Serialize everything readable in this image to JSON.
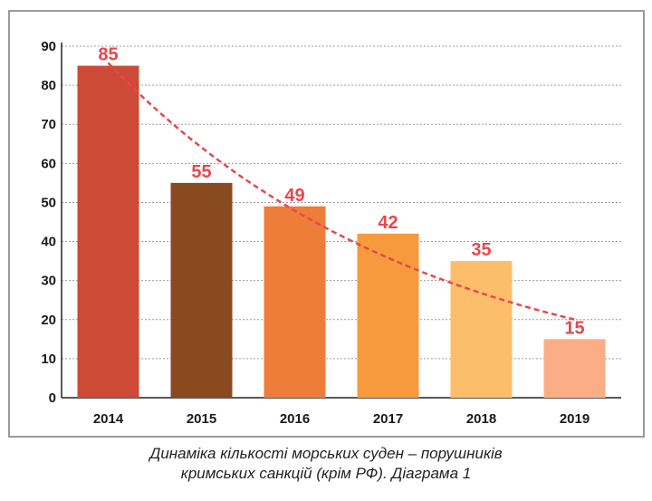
{
  "chart_data": {
    "type": "bar",
    "categories": [
      "2014",
      "2015",
      "2016",
      "2017",
      "2018",
      "2019"
    ],
    "values": [
      85,
      55,
      49,
      42,
      35,
      15
    ],
    "data_labels": [
      "85",
      "55",
      "49",
      "42",
      "35",
      "15"
    ],
    "ylim": [
      0,
      90
    ],
    "yticks": [
      0,
      10,
      20,
      30,
      40,
      50,
      60,
      70,
      80,
      90
    ],
    "grid": true,
    "legend": "none",
    "trendline": {
      "type": "exponential",
      "style": "dashed",
      "color": "#e8474c"
    },
    "bar_colors": [
      "#cc4a36",
      "#8a4a1f",
      "#ee7d3a",
      "#f79a3e",
      "#fcbe6a",
      "#fbae86"
    ],
    "label_color": "#e8474c",
    "xlabel": "",
    "ylabel": ""
  },
  "caption": {
    "line1": "Динаміка кількості морських суден – порушників",
    "line2": "кримських санкцій (крім РФ). Діаграма 1"
  }
}
